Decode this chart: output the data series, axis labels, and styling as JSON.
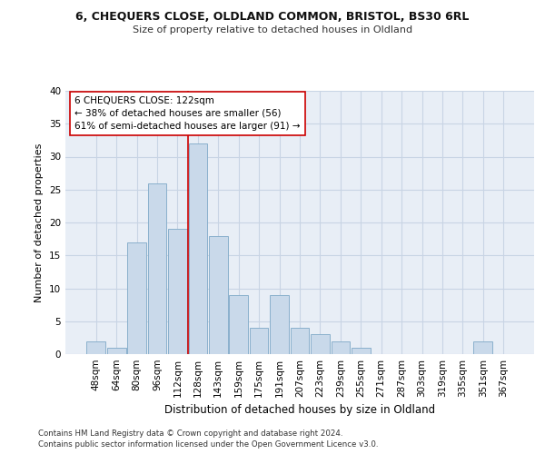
{
  "title1": "6, CHEQUERS CLOSE, OLDLAND COMMON, BRISTOL, BS30 6RL",
  "title2": "Size of property relative to detached houses in Oldland",
  "xlabel": "Distribution of detached houses by size in Oldland",
  "ylabel": "Number of detached properties",
  "categories": [
    "48sqm",
    "64sqm",
    "80sqm",
    "96sqm",
    "112sqm",
    "128sqm",
    "143sqm",
    "159sqm",
    "175sqm",
    "191sqm",
    "207sqm",
    "223sqm",
    "239sqm",
    "255sqm",
    "271sqm",
    "287sqm",
    "303sqm",
    "319sqm",
    "335sqm",
    "351sqm",
    "367sqm"
  ],
  "values": [
    2,
    1,
    17,
    26,
    19,
    32,
    18,
    9,
    4,
    9,
    4,
    3,
    2,
    1,
    0,
    0,
    0,
    0,
    0,
    2,
    0
  ],
  "bar_color": "#c9d9ea",
  "bar_edge_color": "#8ab0cc",
  "vline_x": 4.5,
  "vline_color": "#cc0000",
  "annotation_text": "6 CHEQUERS CLOSE: 122sqm\n← 38% of detached houses are smaller (56)\n61% of semi-detached houses are larger (91) →",
  "annotation_box_color": "#ffffff",
  "annotation_box_edge": "#cc0000",
  "ylim": [
    0,
    40
  ],
  "yticks": [
    0,
    5,
    10,
    15,
    20,
    25,
    30,
    35,
    40
  ],
  "grid_color": "#c8d4e4",
  "bg_color": "#e8eef6",
  "footer1": "Contains HM Land Registry data © Crown copyright and database right 2024.",
  "footer2": "Contains public sector information licensed under the Open Government Licence v3.0."
}
